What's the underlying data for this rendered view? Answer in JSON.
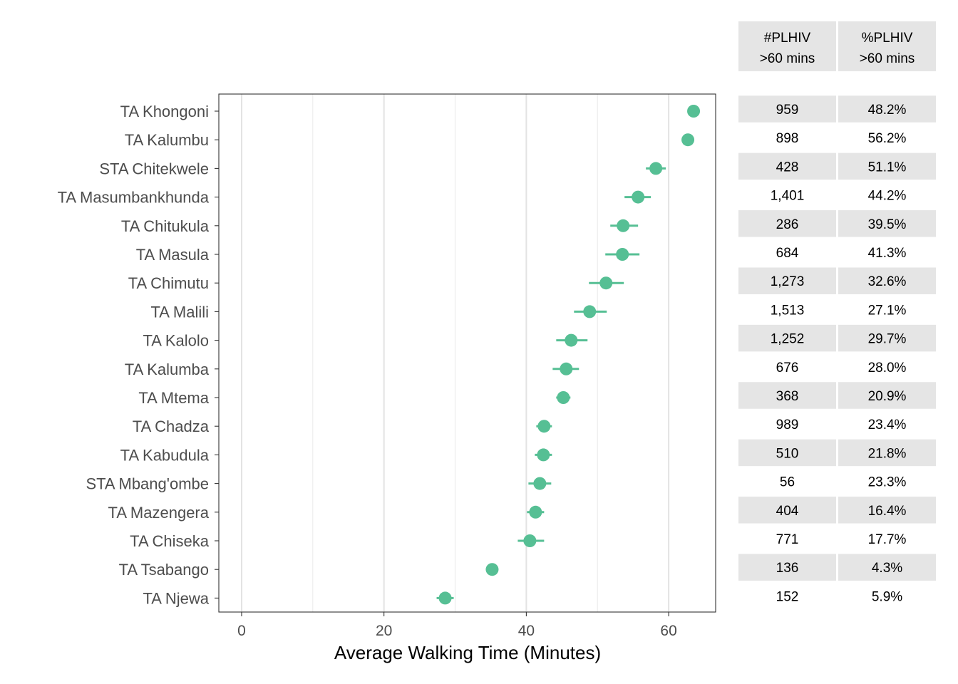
{
  "chart_data": {
    "type": "scatter",
    "xlabel": "Average Walking Time (Minutes)",
    "ylabel": "",
    "xlim": [
      -3.2,
      66.6
    ],
    "x_ticks": [
      0,
      20,
      40,
      60
    ],
    "grid": true,
    "point_color": "#56bf94",
    "categories": [
      "TA Khongoni",
      "TA Kalumbu",
      "STA Chitekwele",
      "TA Masumbankhunda",
      "TA Chitukula",
      "TA Masula",
      "TA Chimutu",
      "TA Malili",
      "TA Kalolo",
      "TA Kalumba",
      "TA Mtema",
      "TA Chadza",
      "TA Kabudula",
      "STA Mbang'ombe",
      "TA Mazengera",
      "TA Chiseka",
      "TA Tsabango",
      "TA Njewa"
    ],
    "values": [
      63.5,
      62.7,
      58.2,
      55.7,
      53.6,
      53.5,
      51.2,
      48.9,
      46.3,
      45.6,
      45.2,
      42.5,
      42.4,
      41.9,
      41.3,
      40.5,
      35.2,
      28.6
    ],
    "ci_lower": [
      63.2,
      62.2,
      56.8,
      53.8,
      51.8,
      51.1,
      48.8,
      46.7,
      44.2,
      43.7,
      44.2,
      41.4,
      41.2,
      40.3,
      40.1,
      38.8,
      35.0,
      27.4
    ],
    "ci_upper": [
      63.8,
      63.2,
      59.6,
      57.5,
      55.7,
      55.9,
      53.7,
      51.3,
      48.6,
      47.4,
      46.2,
      43.6,
      43.6,
      43.5,
      42.5,
      42.5,
      35.4,
      29.8
    ],
    "table": {
      "columns": [
        {
          "title": "#PLHIV",
          "subtitle": ">60 mins"
        },
        {
          "title": "%PLHIV",
          "subtitle": ">60 mins"
        }
      ],
      "rows": [
        [
          "959",
          "48.2%"
        ],
        [
          "898",
          "56.2%"
        ],
        [
          "428",
          "51.1%"
        ],
        [
          "1,401",
          "44.2%"
        ],
        [
          "286",
          "39.5%"
        ],
        [
          "684",
          "41.3%"
        ],
        [
          "1,273",
          "32.6%"
        ],
        [
          "1,513",
          "27.1%"
        ],
        [
          "1,252",
          "29.7%"
        ],
        [
          "676",
          "28.0%"
        ],
        [
          "368",
          "20.9%"
        ],
        [
          "989",
          "23.4%"
        ],
        [
          "510",
          "21.8%"
        ],
        [
          "56",
          "23.3%"
        ],
        [
          "404",
          "16.4%"
        ],
        [
          "771",
          "17.7%"
        ],
        [
          "136",
          "4.3%"
        ],
        [
          "152",
          "5.9%"
        ]
      ]
    }
  }
}
